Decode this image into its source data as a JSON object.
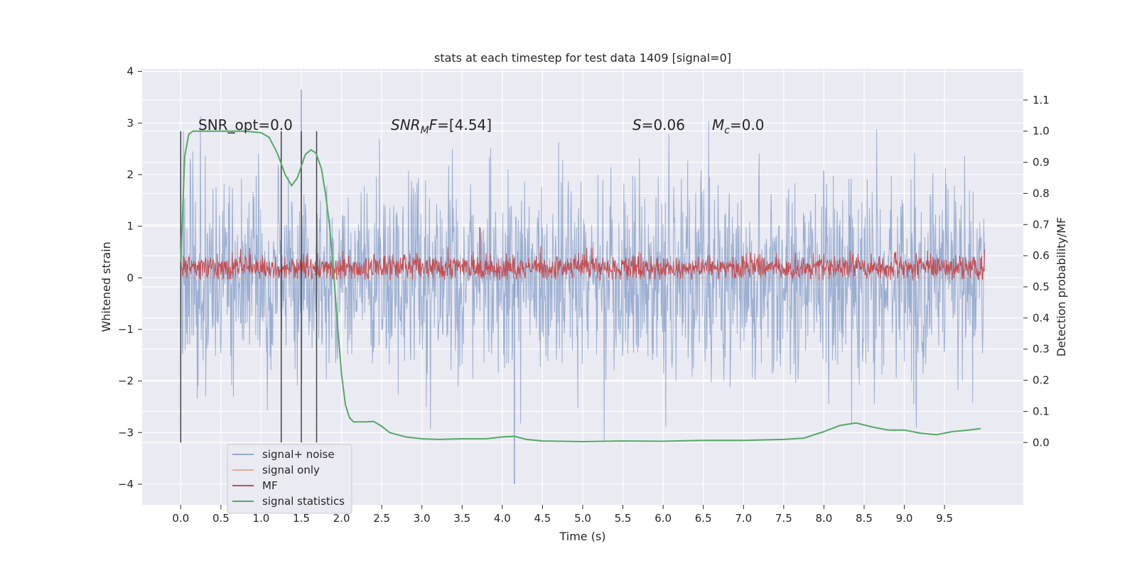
{
  "chart_data": {
    "type": "line",
    "title": "stats at each timestep for test data 1409 [signal=0]",
    "xlabel": "Time (s)",
    "ylabel_left": "Whitened strain",
    "ylabel_right": "Detection probability/MF",
    "xlim": [
      -0.48,
      10.48
    ],
    "ylim_left": [
      -4.4,
      4.05
    ],
    "ylim_right": [
      -0.2,
      1.2
    ],
    "xticks": [
      "0.0",
      "0.5",
      "1.0",
      "1.5",
      "2.0",
      "2.5",
      "3.0",
      "3.5",
      "4.0",
      "4.5",
      "5.0",
      "5.5",
      "6.0",
      "6.5",
      "7.0",
      "7.5",
      "8.0",
      "8.5",
      "9.0",
      "9.5"
    ],
    "yticks_left": [
      "4",
      "3",
      "2",
      "1",
      "0",
      "−1",
      "−2",
      "−3",
      "−4"
    ],
    "yticks_right": [
      "1.1",
      "1.0",
      "0.9",
      "0.8",
      "0.7",
      "0.6",
      "0.5",
      "0.4",
      "0.3",
      "0.2",
      "0.1",
      "0.0"
    ],
    "grid": true,
    "legend_position": "lower-left",
    "annotations": {
      "snr_opt": "SNR_opt=0.0",
      "snr_mf": "=[4.54]",
      "s_value": "=0.06",
      "mc_value": "=0.0"
    },
    "vertical_markers_s": [
      0.0,
      1.25,
      1.5,
      1.69
    ],
    "series": [
      {
        "name": "signal+ noise",
        "color": "#4c72b0",
        "axis": "left",
        "style": "noise",
        "t_range": [
          0.0,
          10.0
        ],
        "typical_range": [
          -2.6,
          2.6
        ],
        "peak_max": 3.65,
        "peak_min": -4.0
      },
      {
        "name": "signal only",
        "color": "#dd8452",
        "axis": "left",
        "style": "flat",
        "values": []
      },
      {
        "name": "MF",
        "color": "#c44e52",
        "axis": "left",
        "style": "noise",
        "t_range": [
          0.0,
          10.0
        ],
        "typical_range": [
          0.0,
          0.45
        ],
        "peak_max": 0.98,
        "peak_min": -0.05
      },
      {
        "name": "signal statistics",
        "color": "#55a868",
        "axis": "right",
        "style": "line",
        "x": [
          0.0,
          0.05,
          0.1,
          0.15,
          0.2,
          0.3,
          0.5,
          0.8,
          1.0,
          1.1,
          1.2,
          1.3,
          1.38,
          1.45,
          1.55,
          1.62,
          1.68,
          1.75,
          1.8,
          1.85,
          1.9,
          1.95,
          2.0,
          2.05,
          2.1,
          2.15,
          2.2,
          2.3,
          2.4,
          2.5,
          2.6,
          2.8,
          3.0,
          3.2,
          3.5,
          3.8,
          4.0,
          4.15,
          4.3,
          4.5,
          5.0,
          5.5,
          6.0,
          6.5,
          7.0,
          7.5,
          7.75,
          8.0,
          8.2,
          8.4,
          8.6,
          8.8,
          9.0,
          9.2,
          9.4,
          9.6,
          9.8,
          9.95
        ],
        "values": [
          0.58,
          0.92,
          0.99,
          1.0,
          1.0,
          1.0,
          1.0,
          1.0,
          0.995,
          0.98,
          0.93,
          0.86,
          0.825,
          0.85,
          0.925,
          0.94,
          0.93,
          0.88,
          0.8,
          0.7,
          0.55,
          0.38,
          0.22,
          0.12,
          0.08,
          0.066,
          0.066,
          0.066,
          0.068,
          0.052,
          0.032,
          0.018,
          0.012,
          0.01,
          0.012,
          0.012,
          0.018,
          0.02,
          0.01,
          0.005,
          0.003,
          0.005,
          0.004,
          0.007,
          0.007,
          0.01,
          0.014,
          0.035,
          0.055,
          0.063,
          0.05,
          0.04,
          0.04,
          0.03,
          0.025,
          0.035,
          0.04,
          0.045
        ]
      }
    ]
  }
}
